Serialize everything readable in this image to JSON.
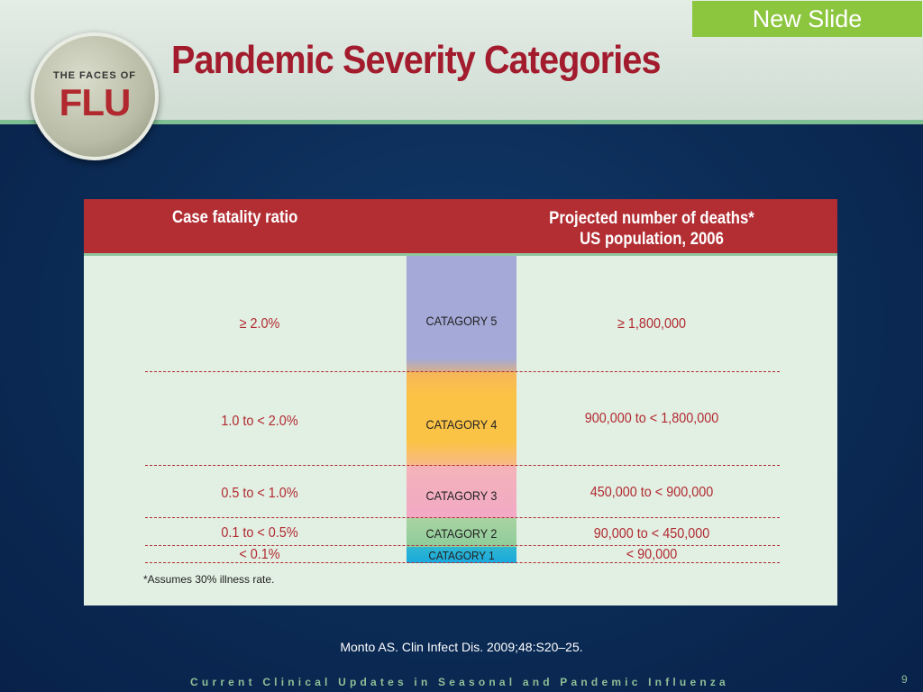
{
  "badge": "New Slide",
  "title": "Pandemic Severity Categories",
  "logo": {
    "top": "THE FACES OF",
    "main": "FLU"
  },
  "table": {
    "header_left": "Case fatality ratio",
    "header_right_line1": "Projected number of deaths*",
    "header_right_line2": "US population, 2006",
    "rows": [
      {
        "cfr": "≥ 2.0%",
        "category": "CATAGORY 5",
        "deaths": "≥ 1,800,000",
        "color": "#a4a9d8"
      },
      {
        "cfr": "1.0 to < 2.0%",
        "category": "CATAGORY 4",
        "deaths": "900,000 to < 1,800,000",
        "color": "#fbc346"
      },
      {
        "cfr": "0.5 to < 1.0%",
        "category": "CATAGORY 3",
        "deaths": "450,000 to < 900,000",
        "color": "#f2a9c6"
      },
      {
        "cfr": "0.1 to < 0.5%",
        "category": "CATAGORY 2",
        "deaths": "90,000 to < 450,000",
        "color": "#9fd29c"
      },
      {
        "cfr": "< 0.1%",
        "category": "CATAGORY 1",
        "deaths": "< 90,000",
        "color": "#2db5d8"
      }
    ],
    "footnote": "*Assumes 30% illness rate."
  },
  "citation": "Monto AS. Clin Infect Dis. 2009;48:S20–25.",
  "footer": "Current Clinical Updates in Seasonal and Pandemic Influenza",
  "page_number": "9"
}
